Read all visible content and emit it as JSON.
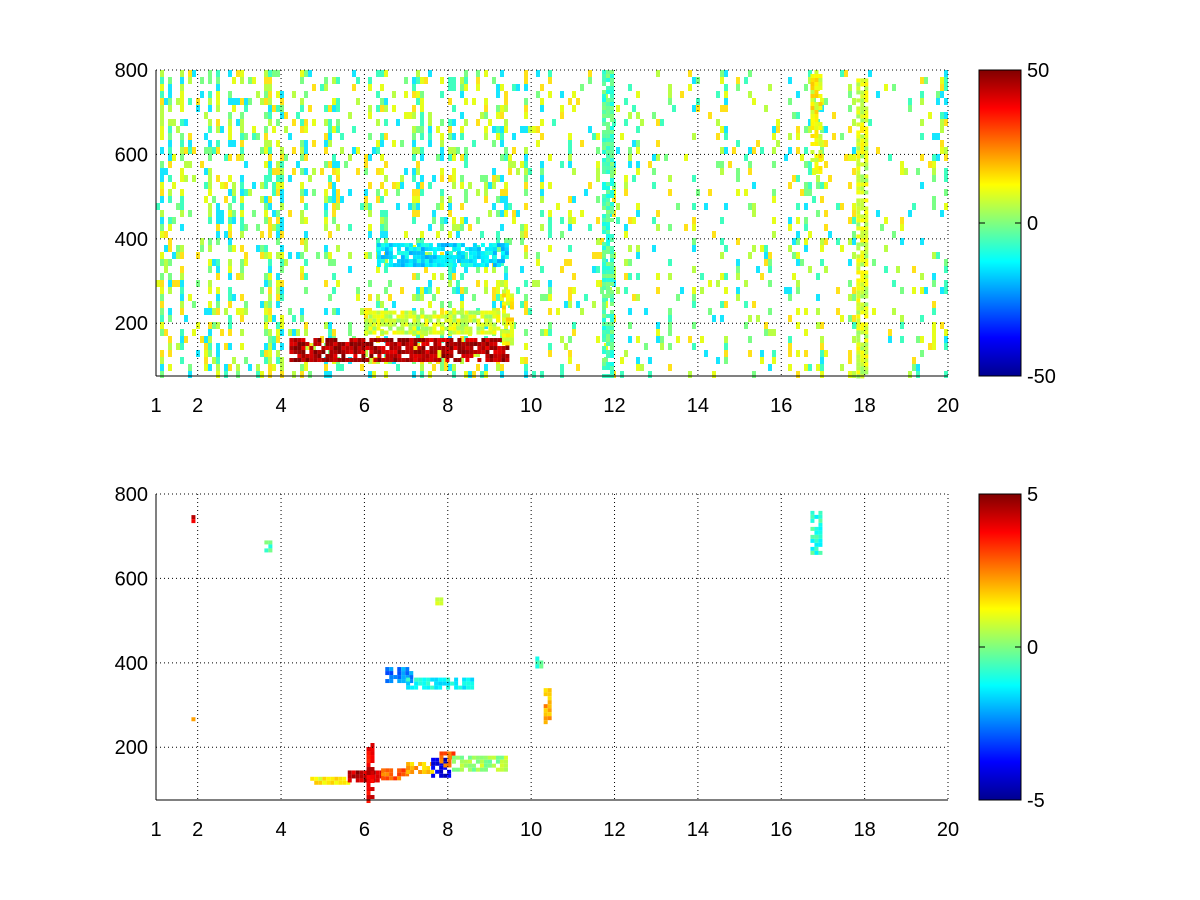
{
  "chart_data": [
    {
      "type": "heatmap",
      "title": "",
      "xlabel": "",
      "ylabel": "",
      "xlim": [
        1,
        20
      ],
      "ylim": [
        75,
        800
      ],
      "xticks": [
        1,
        2,
        4,
        6,
        8,
        10,
        12,
        14,
        16,
        18,
        20
      ],
      "yticks": [
        200,
        400,
        600,
        800
      ],
      "grid": true,
      "colormap": "jet",
      "colorbar": {
        "range": [
          -50,
          50
        ],
        "ticks": [
          -50,
          0,
          50
        ]
      },
      "features": [
        {
          "x": [
            4.2,
            9.4
          ],
          "y": [
            115,
            165
          ],
          "value": 45
        },
        {
          "x": [
            6.0,
            9.2
          ],
          "y": [
            180,
            230
          ],
          "value": 8
        },
        {
          "x": [
            6.3,
            9.4
          ],
          "y": [
            340,
            390
          ],
          "value": -15
        },
        {
          "x": [
            9.3,
            9.5
          ],
          "y": [
            150,
            280
          ],
          "value": 12
        },
        {
          "x": [
            16.7,
            16.9
          ],
          "y": [
            560,
            800
          ],
          "value": 12
        },
        {
          "x": [
            17.8,
            18.0
          ],
          "y": [
            75,
            780
          ],
          "value": 8
        },
        {
          "x": [
            11.7,
            11.9
          ],
          "y": [
            75,
            800
          ],
          "value": -5
        }
      ],
      "density": [
        {
          "x": [
            1,
            4
          ],
          "fill": 0.28
        },
        {
          "x": [
            4,
            10
          ],
          "fill": 0.18
        },
        {
          "x": [
            10,
            20
          ],
          "fill": 0.12
        }
      ],
      "palette": [
        "#b9ff45",
        "#e6ff1a",
        "#3fffbf",
        "#16e6ff",
        "#7aff85",
        "#ffe11a"
      ]
    },
    {
      "type": "heatmap",
      "title": "",
      "xlabel": "",
      "ylabel": "",
      "xlim": [
        1,
        20
      ],
      "ylim": [
        75,
        800
      ],
      "xticks": [
        1,
        2,
        4,
        6,
        8,
        10,
        12,
        14,
        16,
        18,
        20
      ],
      "yticks": [
        200,
        400,
        600,
        800
      ],
      "grid": true,
      "colormap": "jet",
      "colorbar": {
        "range": [
          -5,
          5
        ],
        "ticks": [
          -5,
          0,
          5
        ]
      },
      "features": [
        {
          "x": [
            4.7,
            5.6
          ],
          "y": [
            115,
            130
          ],
          "value": 1.2
        },
        {
          "x": [
            5.6,
            6.4
          ],
          "y": [
            120,
            145
          ],
          "value": 4.5
        },
        {
          "x": [
            6.4,
            7.0
          ],
          "y": [
            128,
            150
          ],
          "value": 2.8
        },
        {
          "x": [
            7.0,
            7.6
          ],
          "y": [
            140,
            165
          ],
          "value": 2.0
        },
        {
          "x": [
            7.6,
            8.0
          ],
          "y": [
            130,
            175
          ],
          "value": -4.0
        },
        {
          "x": [
            7.8,
            8.1
          ],
          "y": [
            155,
            190
          ],
          "value": 3.0
        },
        {
          "x": [
            8.1,
            9.4
          ],
          "y": [
            145,
            180
          ],
          "value": 0.3
        },
        {
          "x": [
            6.5,
            7.1
          ],
          "y": [
            355,
            390
          ],
          "value": -2.5
        },
        {
          "x": [
            7.0,
            8.6
          ],
          "y": [
            345,
            365
          ],
          "value": -1.2
        },
        {
          "x": [
            10.3,
            10.4
          ],
          "y": [
            260,
            340
          ],
          "value": 2.0
        },
        {
          "x": [
            10.1,
            10.2
          ],
          "y": [
            395,
            415
          ],
          "value": -0.5
        },
        {
          "x": [
            16.7,
            16.9
          ],
          "y": [
            665,
            760
          ],
          "value": -0.8
        },
        {
          "x": [
            7.7,
            7.8
          ],
          "y": [
            540,
            555
          ],
          "value": 1.0
        },
        {
          "x": [
            3.6,
            3.7
          ],
          "y": [
            660,
            690
          ],
          "value": -0.5
        },
        {
          "x": [
            1.85,
            1.9
          ],
          "y": [
            735,
            750
          ],
          "value": 4.0
        },
        {
          "x": [
            1.85,
            1.9
          ],
          "y": [
            270,
            290
          ],
          "value": 2.0
        },
        {
          "x": [
            6.05,
            6.15
          ],
          "y": [
            75,
            210
          ],
          "value": 4.0
        }
      ]
    }
  ]
}
